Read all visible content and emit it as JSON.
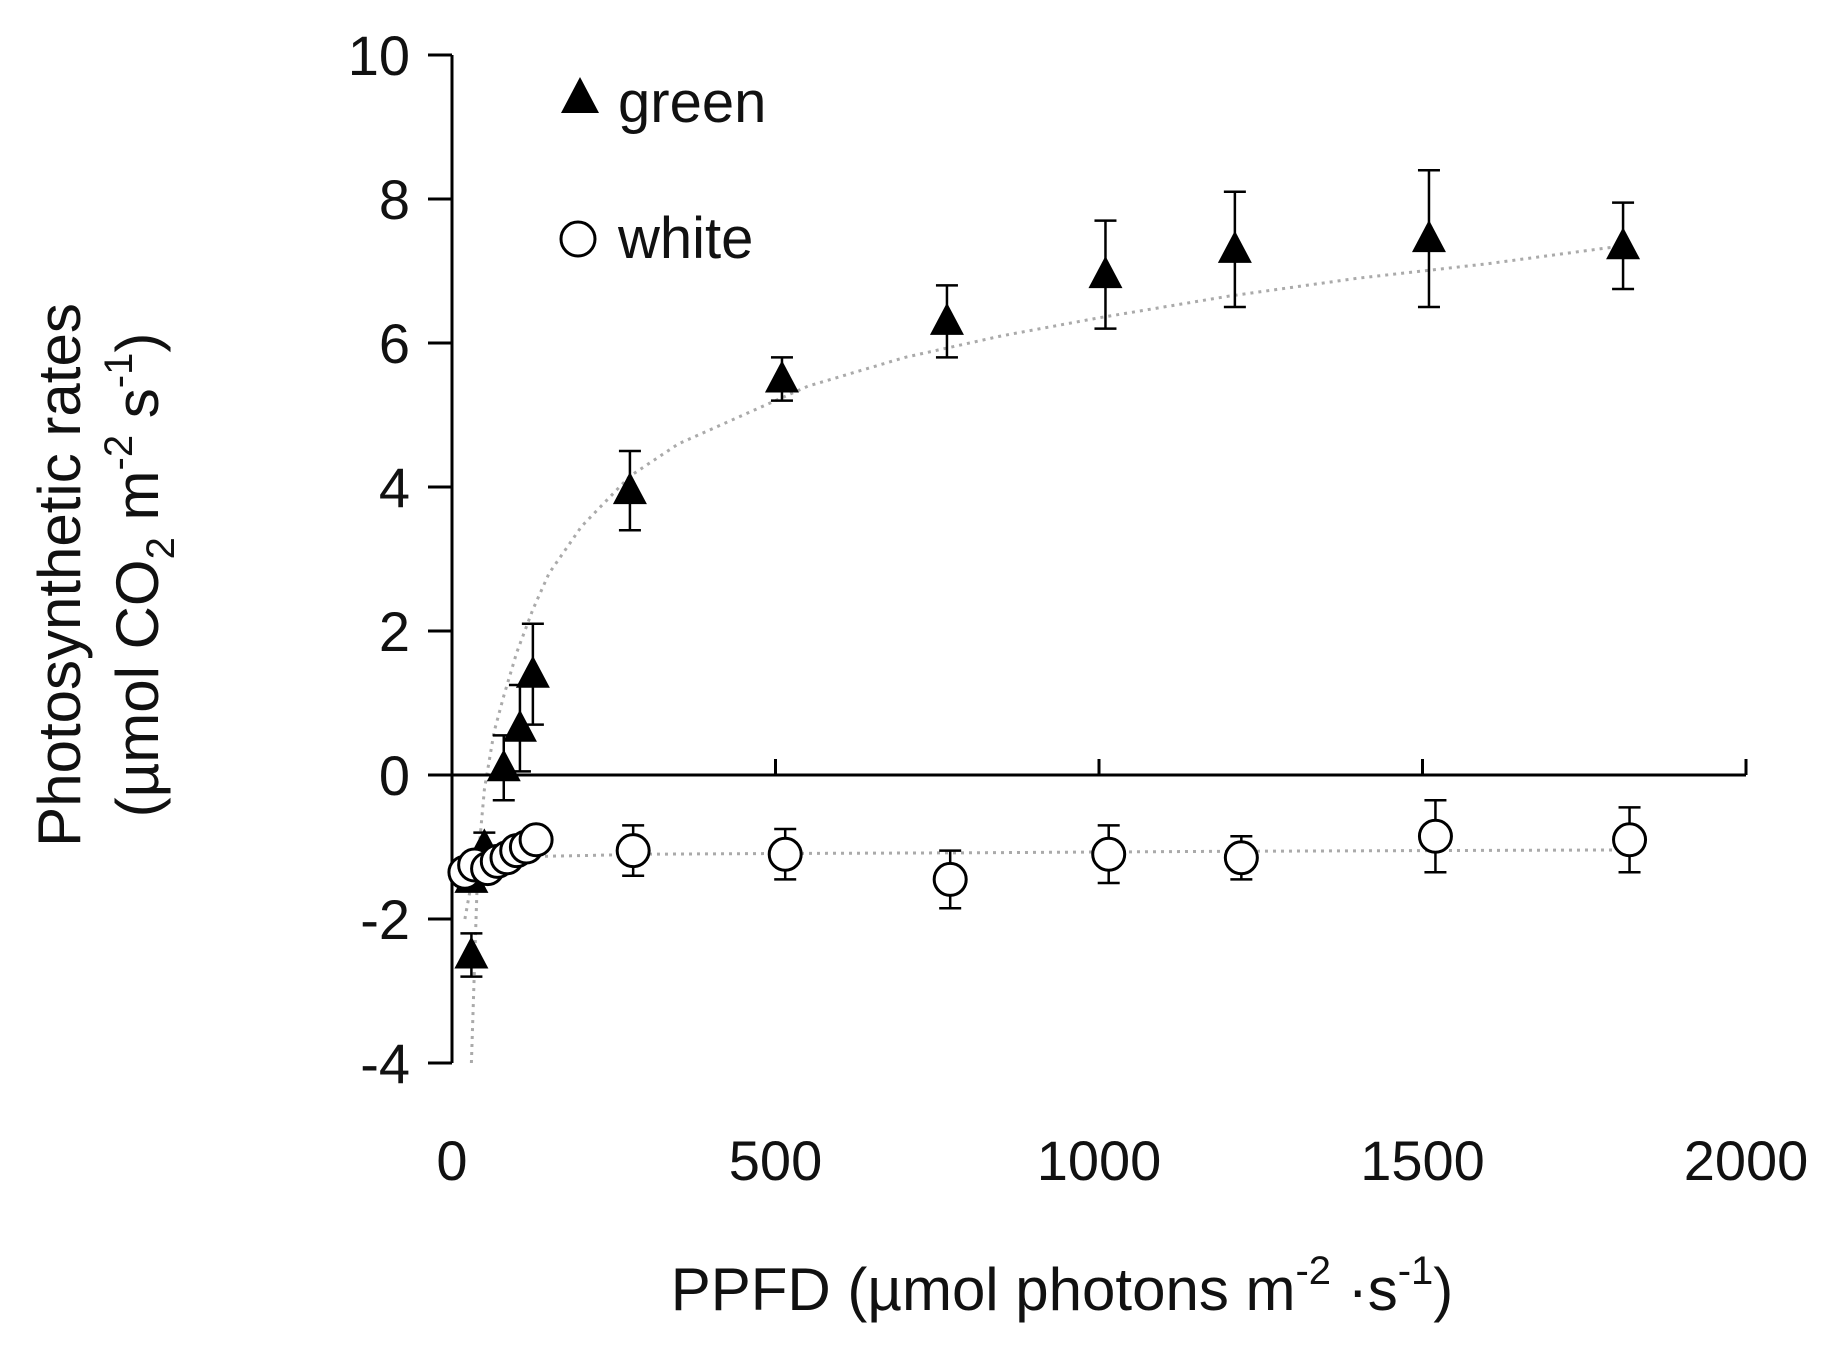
{
  "chart_data": {
    "type": "scatter",
    "xlabel": {
      "main": "PPFD (µmol photons m",
      "sup1": "-2",
      "mid": " ·s",
      "sup2": "-1",
      "end": ")"
    },
    "ylabel": {
      "line1": "Photosynthetic rates",
      "line2": {
        "main": "(µmol CO",
        "sub": "2",
        "mid": " m",
        "sup1": "-2",
        "s": "s",
        "sup2": "-1",
        "end": ")"
      }
    },
    "xlim": [
      0,
      2000
    ],
    "ylim": [
      -4,
      10
    ],
    "x_ticks": [
      0,
      500,
      1000,
      1500,
      2000
    ],
    "y_ticks": [
      -4,
      -2,
      0,
      2,
      4,
      6,
      8,
      10
    ],
    "grid": false,
    "legend_position": "top-left",
    "series": [
      {
        "name": "green",
        "marker": "filled-triangle",
        "color": "#000000",
        "points": [
          {
            "x": 30,
            "y": -2.5,
            "err": 0.3
          },
          {
            "x": 30,
            "y": -1.45,
            "err": 0.15
          },
          {
            "x": 50,
            "y": -1.0,
            "err": 0.2
          },
          {
            "x": 80,
            "y": 0.1,
            "err": 0.45
          },
          {
            "x": 105,
            "y": 0.65,
            "err": 0.6
          },
          {
            "x": 125,
            "y": 1.4,
            "err": 0.7
          },
          {
            "x": 275,
            "y": 3.95,
            "err": 0.55
          },
          {
            "x": 510,
            "y": 5.5,
            "err": 0.3
          },
          {
            "x": 765,
            "y": 6.3,
            "err": 0.5
          },
          {
            "x": 1010,
            "y": 6.95,
            "err": 0.75
          },
          {
            "x": 1210,
            "y": 7.3,
            "err": 0.8
          },
          {
            "x": 1510,
            "y": 7.45,
            "err": 0.95
          },
          {
            "x": 1810,
            "y": 7.35,
            "err": 0.6
          }
        ],
        "fit": {
          "x": [
            30,
            40,
            50,
            65,
            80,
            100,
            125,
            150,
            200,
            275,
            350,
            450,
            550,
            700,
            850,
            1000,
            1200,
            1400,
            1600,
            1810
          ],
          "y": [
            -4.0,
            -1.2,
            -0.2,
            0.6,
            1.1,
            1.7,
            2.3,
            2.8,
            3.45,
            4.15,
            4.6,
            5.0,
            5.4,
            5.8,
            6.1,
            6.35,
            6.65,
            6.9,
            7.1,
            7.35
          ]
        }
      },
      {
        "name": "white",
        "marker": "open-circle",
        "color": "#000000",
        "points": [
          {
            "x": 20,
            "y": -1.35,
            "err": 0.12
          },
          {
            "x": 35,
            "y": -1.25,
            "err": 0.12
          },
          {
            "x": 55,
            "y": -1.3,
            "err": 0.15
          },
          {
            "x": 70,
            "y": -1.2,
            "err": 0.15
          },
          {
            "x": 85,
            "y": -1.15,
            "err": 0.15
          },
          {
            "x": 100,
            "y": -1.05,
            "err": 0.15
          },
          {
            "x": 115,
            "y": -1.0,
            "err": 0.15
          },
          {
            "x": 130,
            "y": -0.9,
            "err": 0.12
          },
          {
            "x": 280,
            "y": -1.05,
            "err": 0.35
          },
          {
            "x": 515,
            "y": -1.1,
            "err": 0.35
          },
          {
            "x": 770,
            "y": -1.45,
            "err": 0.4
          },
          {
            "x": 1015,
            "y": -1.1,
            "err": 0.4
          },
          {
            "x": 1220,
            "y": -1.15,
            "err": 0.3
          },
          {
            "x": 1520,
            "y": -0.85,
            "err": 0.5
          },
          {
            "x": 1820,
            "y": -0.9,
            "err": 0.45
          }
        ],
        "fit": {
          "x": [
            20,
            30,
            45,
            60,
            80,
            100,
            130,
            200,
            300,
            500,
            800,
            1000,
            1200,
            1500,
            1820
          ],
          "y": [
            -2.0,
            -1.5,
            -1.3,
            -1.22,
            -1.18,
            -1.15,
            -1.13,
            -1.12,
            -1.1,
            -1.09,
            -1.08,
            -1.07,
            -1.06,
            -1.05,
            -1.04
          ]
        }
      }
    ]
  }
}
